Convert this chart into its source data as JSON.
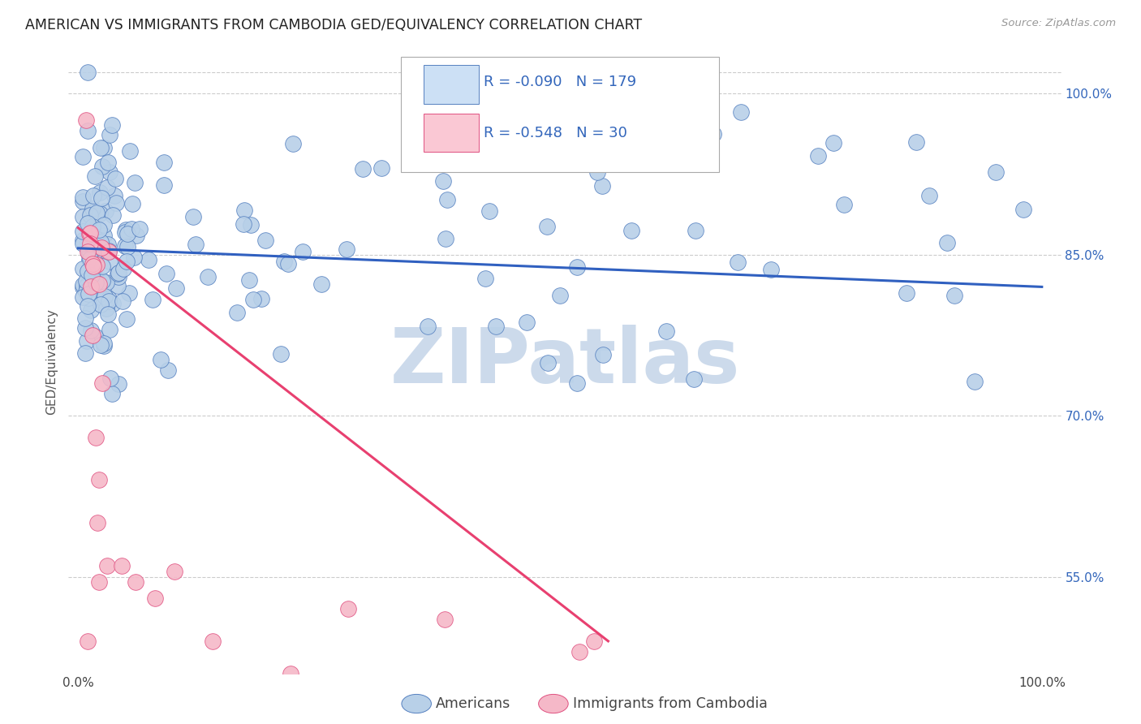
{
  "title": "AMERICAN VS IMMIGRANTS FROM CAMBODIA GED/EQUIVALENCY CORRELATION CHART",
  "source": "Source: ZipAtlas.com",
  "ylabel": "GED/Equivalency",
  "blue_R": "-0.090",
  "blue_N": "179",
  "pink_R": "-0.548",
  "pink_N": "30",
  "blue_fill": "#b8d0e8",
  "blue_edge": "#5580c0",
  "pink_fill": "#f5b8c8",
  "pink_edge": "#e05080",
  "blue_line": "#3060c0",
  "pink_line": "#e84070",
  "legend_blue_face": "#cce0f5",
  "legend_pink_face": "#fac8d4",
  "background_color": "#ffffff",
  "grid_color": "#cccccc",
  "title_fontsize": 12.5,
  "legend_fontsize": 13,
  "tick_fontsize": 11,
  "ylabel_fontsize": 11,
  "right_tick_color": "#3366bb",
  "blue_trend_x0": 0.0,
  "blue_trend_x1": 1.0,
  "blue_trend_y0": 0.856,
  "blue_trend_y1": 0.82,
  "pink_trend_x0": 0.0,
  "pink_trend_x1": 0.55,
  "pink_trend_y0": 0.875,
  "pink_trend_y1": 0.49,
  "ylim_min": 0.46,
  "ylim_max": 1.04,
  "xlim_min": -0.01,
  "xlim_max": 1.02,
  "y_ticks": [
    0.55,
    0.7,
    0.85,
    1.0
  ],
  "y_tick_labels": [
    "55.0%",
    "70.0%",
    "85.0%",
    "100.0%"
  ],
  "x_ticks": [
    0.0,
    1.0
  ],
  "x_tick_labels": [
    "0.0%",
    "100.0%"
  ],
  "watermark": "ZIPatlas",
  "watermark_color": "#ccdaeb",
  "scatter_size": 200
}
